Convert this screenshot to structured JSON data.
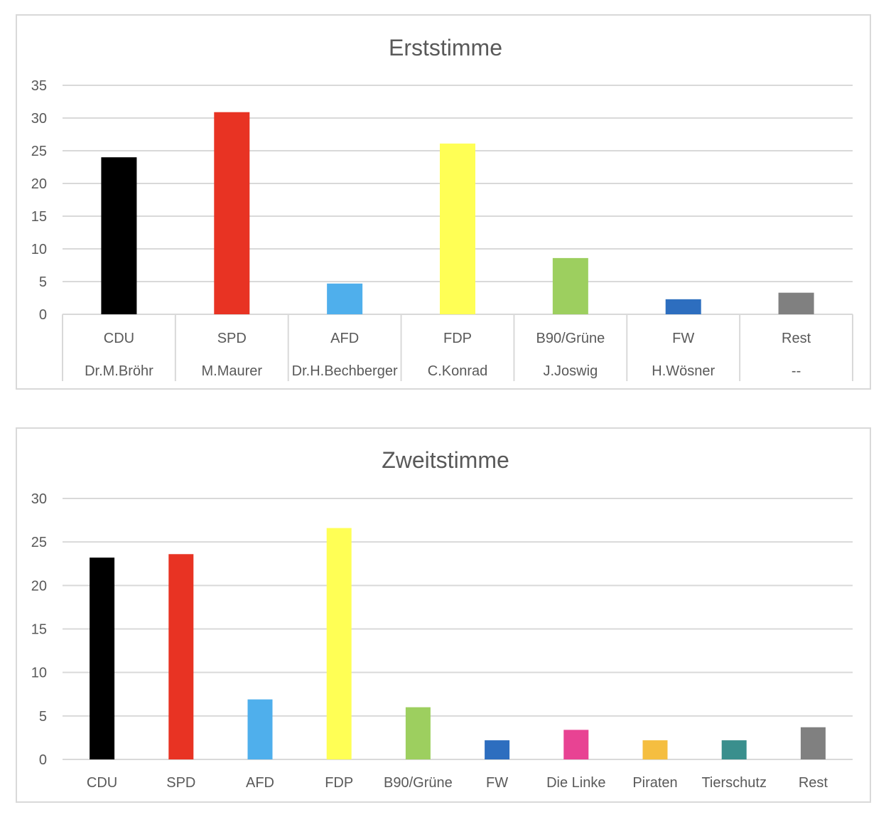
{
  "chart_data": [
    {
      "type": "bar",
      "title": "Erststimme",
      "categories": [
        "CDU",
        "SPD",
        "AFD",
        "FDP",
        "B90/Grüne",
        "FW",
        "Rest"
      ],
      "sublabels": [
        "Dr.M.Bröhr",
        "M.Maurer",
        "Dr.H.Bechberger",
        "C.Konrad",
        "J.Joswig",
        "H.Wösner",
        "--"
      ],
      "values": [
        24.0,
        30.9,
        4.7,
        26.1,
        8.6,
        2.3,
        3.3
      ],
      "colors": [
        "#000000",
        "#e83323",
        "#4fafec",
        "#ffff55",
        "#9dcf5f",
        "#2d6ebf",
        "#808080"
      ],
      "ylim": [
        0,
        35
      ],
      "yticks": [
        0,
        5,
        10,
        15,
        20,
        25,
        30,
        35
      ],
      "xlabel": "",
      "ylabel": "",
      "grid": true
    },
    {
      "type": "bar",
      "title": "Zweitstimme",
      "categories": [
        "CDU",
        "SPD",
        "AFD",
        "FDP",
        "B90/Grüne",
        "FW",
        "Die Linke",
        "Piraten",
        "Tierschutz",
        "Rest"
      ],
      "values": [
        23.2,
        23.6,
        6.9,
        26.6,
        6.0,
        2.2,
        3.4,
        2.2,
        2.2,
        3.7
      ],
      "colors": [
        "#000000",
        "#e83323",
        "#4fafec",
        "#ffff55",
        "#9dcf5f",
        "#2d6ebf",
        "#e84393",
        "#f5be40",
        "#3a8f8d",
        "#808080"
      ],
      "ylim": [
        0,
        30
      ],
      "yticks": [
        0,
        5,
        10,
        15,
        20,
        25,
        30
      ],
      "xlabel": "",
      "ylabel": "",
      "grid": true
    }
  ]
}
